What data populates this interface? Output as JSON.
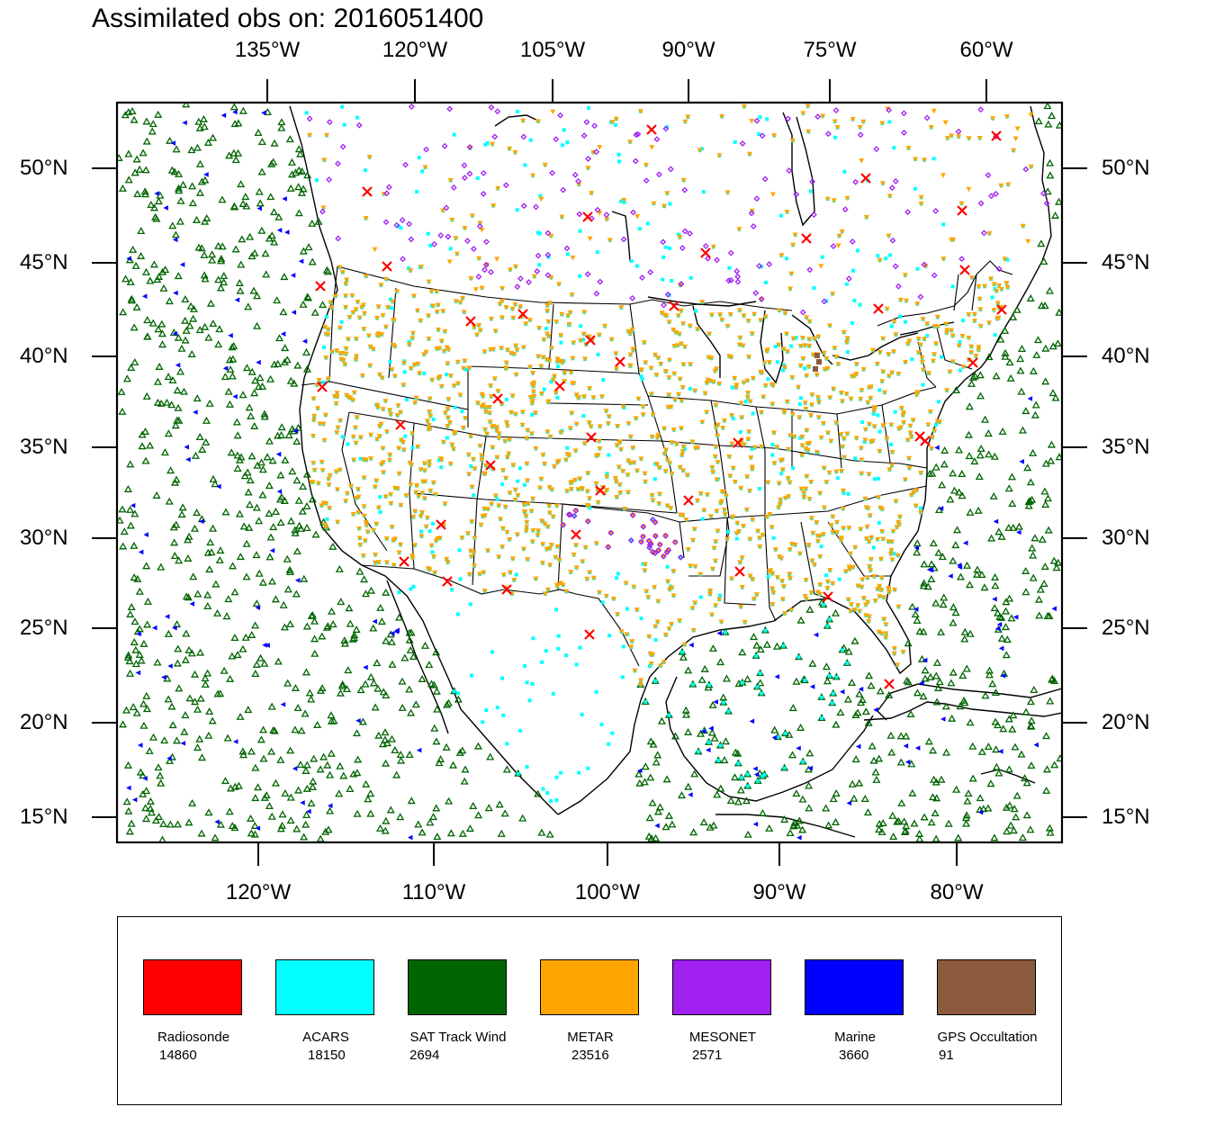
{
  "title": "Assimilated obs on: 2016051400",
  "axes": {
    "top_lon_labels": [
      "135°W",
      "120°W",
      "105°W",
      "90°W",
      "75°W",
      "60°W"
    ],
    "bottom_lon_labels": [
      "120°W",
      "110°W",
      "100°W",
      "90°W",
      "80°W"
    ],
    "lat_labels": [
      "50°N",
      "45°N",
      "40°N",
      "35°N",
      "30°N",
      "25°N",
      "20°N",
      "15°N"
    ]
  },
  "legend": [
    {
      "name": "Radiosonde",
      "count": "14860",
      "color": "#ff0000"
    },
    {
      "name": "ACARS",
      "count": "18150",
      "color": "#00ffff"
    },
    {
      "name": "SAT Track Wind",
      "count": "2694",
      "color": "#006400"
    },
    {
      "name": "METAR",
      "count": "23516",
      "color": "#ffa500"
    },
    {
      "name": "MESONET",
      "count": "2571",
      "color": "#a020f0"
    },
    {
      "name": "Marine",
      "count": "3660",
      "color": "#0000ff"
    },
    {
      "name": "GPS Occultation",
      "count": "91",
      "color": "#8b5a3c"
    }
  ]
}
